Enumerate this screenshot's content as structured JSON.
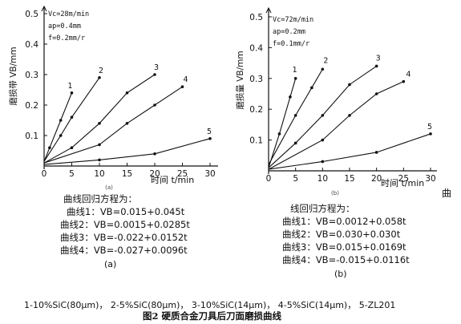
{
  "chart_data": [
    {
      "type": "line",
      "panel": "a",
      "ylabel": "磨损带 VB/mm",
      "xlabel": "时间 t/min",
      "xlim": [
        0,
        30
      ],
      "ylim": [
        0,
        0.5
      ],
      "x_ticks": [
        "0",
        "5",
        "10",
        "15",
        "20",
        "25",
        "30"
      ],
      "y_ticks": [
        "0.1",
        "0.2",
        "0.3",
        "0.4",
        "0.5"
      ],
      "tick_sub": "(a)",
      "conditions": [
        "Vc=28m/min",
        "ap=0.4mm",
        "f=0.2mm/r"
      ],
      "series": [
        {
          "name": "1",
          "x": [
            0,
            1,
            3,
            5
          ],
          "y": [
            0.015,
            0.06,
            0.15,
            0.24
          ]
        },
        {
          "name": "2",
          "x": [
            0,
            3,
            5,
            10
          ],
          "y": [
            0.015,
            0.1,
            0.16,
            0.29
          ]
        },
        {
          "name": "3",
          "x": [
            0,
            5,
            10,
            15,
            20
          ],
          "y": [
            0.01,
            0.06,
            0.14,
            0.24,
            0.3
          ]
        },
        {
          "name": "4",
          "x": [
            0,
            10,
            15,
            20,
            25
          ],
          "y": [
            0.01,
            0.07,
            0.14,
            0.2,
            0.26
          ]
        },
        {
          "name": "5",
          "x": [
            0,
            10,
            20,
            30
          ],
          "y": [
            0.005,
            0.02,
            0.04,
            0.09
          ]
        }
      ]
    },
    {
      "type": "line",
      "panel": "b",
      "ylabel": "磨损量 VB/mm",
      "xlabel": "时间 t/min",
      "xlim": [
        0,
        30
      ],
      "ylim": [
        0,
        0.5
      ],
      "x_ticks": [
        "0",
        "5",
        "10",
        "15",
        "20",
        "25",
        "30"
      ],
      "y_ticks": [
        "0.1",
        "0.2",
        "0.3",
        "0.4",
        "0.5"
      ],
      "tick_sub": "(b)",
      "conditions": [
        "Vc=72m/min",
        "ap=0.2mm",
        "f=0.1mm/r"
      ],
      "series": [
        {
          "name": "1",
          "x": [
            0,
            2,
            4,
            5
          ],
          "y": [
            0.01,
            0.12,
            0.24,
            0.3
          ]
        },
        {
          "name": "2",
          "x": [
            0,
            5,
            8,
            10
          ],
          "y": [
            0.02,
            0.18,
            0.27,
            0.33
          ]
        },
        {
          "name": "3",
          "x": [
            0,
            5,
            10,
            15,
            20
          ],
          "y": [
            0.01,
            0.09,
            0.18,
            0.28,
            0.34
          ]
        },
        {
          "name": "4",
          "x": [
            0,
            10,
            15,
            20,
            25
          ],
          "y": [
            0.005,
            0.1,
            0.18,
            0.25,
            0.29
          ]
        },
        {
          "name": "5",
          "x": [
            0,
            10,
            20,
            30
          ],
          "y": [
            0.005,
            0.03,
            0.06,
            0.12
          ]
        }
      ]
    }
  ],
  "equations_a": {
    "title": "曲线回归方程为：",
    "lines": [
      "曲线1：VB=0.015+0.045t",
      "曲线2：VB=0.0015+0.0285t",
      "曲线3：VB=-0.022+0.0152t",
      "曲线4：VB=-0.027+0.0096t"
    ],
    "label": "(a)"
  },
  "equations_b": {
    "title": "线回归方程为：",
    "lines": [
      "曲线1：VB=0.0012+0.058t",
      "曲线2：VB=0.030+0.030t",
      "曲线3：VB=0.015+0.0169t",
      "曲线4：VB=-0.015+0.0116t"
    ],
    "label": "(b)"
  },
  "stray_char": "曲",
  "legend_text": "1-10%SiC(80μm)，  2-5%SiC(80μm)，  3-10%SiC(14μm)，  4-5%SiC(14μm)，   5-ZL201",
  "caption": "图2 硬质合金刀具后刀面磨损曲线",
  "colors": {
    "ink": "#111111"
  }
}
